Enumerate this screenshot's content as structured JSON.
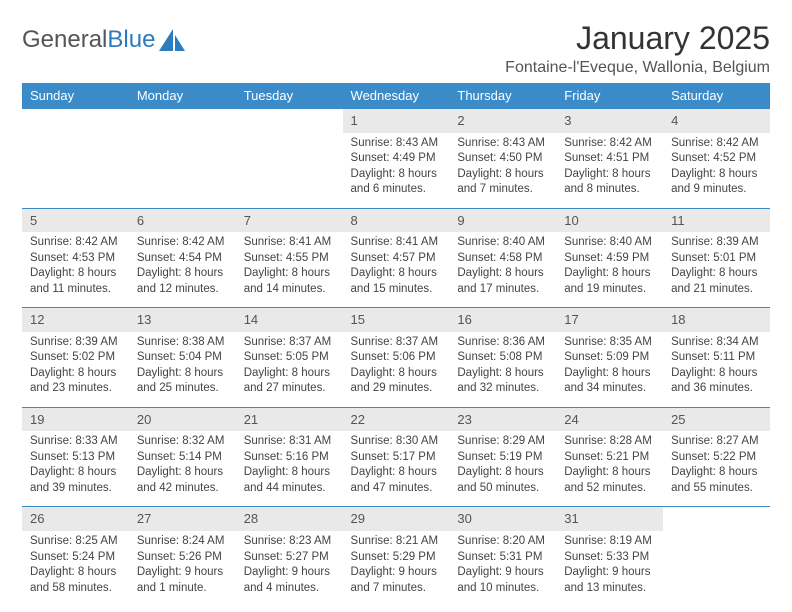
{
  "logo": {
    "text1": "General",
    "text2": "Blue"
  },
  "title": "January 2025",
  "location": "Fontaine-l'Eveque, Wallonia, Belgium",
  "colors": {
    "header_bg": "#3b8bc9",
    "header_text": "#ffffff",
    "daynum_bg": "#e9e9e9",
    "row_border": "#3b8bc9",
    "logo_blue": "#2b7bbf"
  },
  "weekdays": [
    "Sunday",
    "Monday",
    "Tuesday",
    "Wednesday",
    "Thursday",
    "Friday",
    "Saturday"
  ],
  "weeks": [
    [
      null,
      null,
      null,
      {
        "n": "1",
        "sr": "8:43 AM",
        "ss": "4:49 PM",
        "dl": "8 hours and 6 minutes."
      },
      {
        "n": "2",
        "sr": "8:43 AM",
        "ss": "4:50 PM",
        "dl": "8 hours and 7 minutes."
      },
      {
        "n": "3",
        "sr": "8:42 AM",
        "ss": "4:51 PM",
        "dl": "8 hours and 8 minutes."
      },
      {
        "n": "4",
        "sr": "8:42 AM",
        "ss": "4:52 PM",
        "dl": "8 hours and 9 minutes."
      }
    ],
    [
      {
        "n": "5",
        "sr": "8:42 AM",
        "ss": "4:53 PM",
        "dl": "8 hours and 11 minutes."
      },
      {
        "n": "6",
        "sr": "8:42 AM",
        "ss": "4:54 PM",
        "dl": "8 hours and 12 minutes."
      },
      {
        "n": "7",
        "sr": "8:41 AM",
        "ss": "4:55 PM",
        "dl": "8 hours and 14 minutes."
      },
      {
        "n": "8",
        "sr": "8:41 AM",
        "ss": "4:57 PM",
        "dl": "8 hours and 15 minutes."
      },
      {
        "n": "9",
        "sr": "8:40 AM",
        "ss": "4:58 PM",
        "dl": "8 hours and 17 minutes."
      },
      {
        "n": "10",
        "sr": "8:40 AM",
        "ss": "4:59 PM",
        "dl": "8 hours and 19 minutes."
      },
      {
        "n": "11",
        "sr": "8:39 AM",
        "ss": "5:01 PM",
        "dl": "8 hours and 21 minutes."
      }
    ],
    [
      {
        "n": "12",
        "sr": "8:39 AM",
        "ss": "5:02 PM",
        "dl": "8 hours and 23 minutes."
      },
      {
        "n": "13",
        "sr": "8:38 AM",
        "ss": "5:04 PM",
        "dl": "8 hours and 25 minutes."
      },
      {
        "n": "14",
        "sr": "8:37 AM",
        "ss": "5:05 PM",
        "dl": "8 hours and 27 minutes."
      },
      {
        "n": "15",
        "sr": "8:37 AM",
        "ss": "5:06 PM",
        "dl": "8 hours and 29 minutes."
      },
      {
        "n": "16",
        "sr": "8:36 AM",
        "ss": "5:08 PM",
        "dl": "8 hours and 32 minutes."
      },
      {
        "n": "17",
        "sr": "8:35 AM",
        "ss": "5:09 PM",
        "dl": "8 hours and 34 minutes."
      },
      {
        "n": "18",
        "sr": "8:34 AM",
        "ss": "5:11 PM",
        "dl": "8 hours and 36 minutes."
      }
    ],
    [
      {
        "n": "19",
        "sr": "8:33 AM",
        "ss": "5:13 PM",
        "dl": "8 hours and 39 minutes."
      },
      {
        "n": "20",
        "sr": "8:32 AM",
        "ss": "5:14 PM",
        "dl": "8 hours and 42 minutes."
      },
      {
        "n": "21",
        "sr": "8:31 AM",
        "ss": "5:16 PM",
        "dl": "8 hours and 44 minutes."
      },
      {
        "n": "22",
        "sr": "8:30 AM",
        "ss": "5:17 PM",
        "dl": "8 hours and 47 minutes."
      },
      {
        "n": "23",
        "sr": "8:29 AM",
        "ss": "5:19 PM",
        "dl": "8 hours and 50 minutes."
      },
      {
        "n": "24",
        "sr": "8:28 AM",
        "ss": "5:21 PM",
        "dl": "8 hours and 52 minutes."
      },
      {
        "n": "25",
        "sr": "8:27 AM",
        "ss": "5:22 PM",
        "dl": "8 hours and 55 minutes."
      }
    ],
    [
      {
        "n": "26",
        "sr": "8:25 AM",
        "ss": "5:24 PM",
        "dl": "8 hours and 58 minutes."
      },
      {
        "n": "27",
        "sr": "8:24 AM",
        "ss": "5:26 PM",
        "dl": "9 hours and 1 minute."
      },
      {
        "n": "28",
        "sr": "8:23 AM",
        "ss": "5:27 PM",
        "dl": "9 hours and 4 minutes."
      },
      {
        "n": "29",
        "sr": "8:21 AM",
        "ss": "5:29 PM",
        "dl": "9 hours and 7 minutes."
      },
      {
        "n": "30",
        "sr": "8:20 AM",
        "ss": "5:31 PM",
        "dl": "9 hours and 10 minutes."
      },
      {
        "n": "31",
        "sr": "8:19 AM",
        "ss": "5:33 PM",
        "dl": "9 hours and 13 minutes."
      },
      null
    ]
  ],
  "labels": {
    "sunrise": "Sunrise:",
    "sunset": "Sunset:",
    "daylight": "Daylight:"
  }
}
